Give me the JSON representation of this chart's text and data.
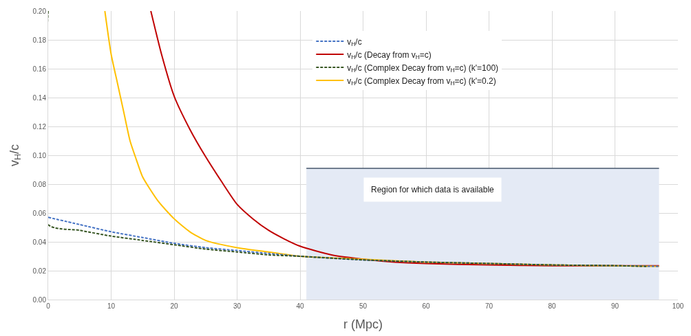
{
  "chart_data": {
    "type": "line",
    "xlabel": "r (Mpc)",
    "ylabel": "v$_{H}$/c",
    "xlim": [
      0,
      100
    ],
    "xticks": [
      0,
      10,
      20,
      30,
      40,
      50,
      60,
      70,
      80,
      90,
      100
    ],
    "ylim": [
      0,
      0.2
    ],
    "yticks": [
      {
        "value": 0,
        "label": "0.00"
      },
      {
        "value": 0.02,
        "label": "0.02"
      },
      {
        "value": 0.04,
        "label": "0.04"
      },
      {
        "value": 0.06,
        "label": "0.06"
      },
      {
        "value": 0.08,
        "label": "0.08"
      },
      {
        "value": 0.1,
        "label": "0.10"
      },
      {
        "value": 0.12,
        "label": "0.12"
      },
      {
        "value": 0.14,
        "label": "0.14"
      },
      {
        "value": 0.16,
        "label": "0.16"
      },
      {
        "value": 0.18,
        "label": "0.18"
      },
      {
        "value": 0.2,
        "label": "0.20"
      }
    ],
    "grid": true,
    "legend": "top right",
    "marker": "none",
    "series": [
      {
        "type": "area",
        "color": "#e4eaf5",
        "x": [
          41,
          97
        ],
        "values": [
          0.091,
          0.091
        ]
      },
      {
        "name": "v$_{H}$/c",
        "color": "#4472c4",
        "line_style": "dashed",
        "x": [
          0,
          5,
          10,
          15,
          20,
          25,
          30,
          35,
          40,
          50,
          60,
          70,
          80,
          90,
          97
        ],
        "values": [
          0.057,
          0.052,
          0.047,
          0.043,
          0.039,
          0.036,
          0.034,
          0.032,
          0.03,
          0.0275,
          0.026,
          0.025,
          0.024,
          0.0235,
          0.023
        ]
      },
      {
        "name": "v$_{H}$/c (Decay from v$_{H}$=c)",
        "color": "#c00000",
        "line_style": "solid",
        "x": [
          16.3,
          18,
          20,
          22.5,
          25,
          27.5,
          30,
          32.5,
          35,
          37.5,
          40,
          45,
          50,
          55,
          60,
          70,
          80,
          90,
          97
        ],
        "values": [
          0.2,
          0.17,
          0.141,
          0.118,
          0.099,
          0.082,
          0.066,
          0.056,
          0.048,
          0.042,
          0.037,
          0.031,
          0.028,
          0.026,
          0.025,
          0.024,
          0.0235,
          0.0235,
          0.0235
        ]
      },
      {
        "name": "v$_{H}$/c (Complex Decay from v$_{H}$=c) (k'=100)",
        "color": "#375623",
        "line_style": "dashed",
        "x": [
          0,
          0,
          5,
          10,
          15,
          20,
          25,
          30,
          35,
          40,
          50,
          60,
          70,
          80,
          90,
          95
        ],
        "values": [
          0.2,
          0.052,
          0.048,
          0.044,
          0.041,
          0.038,
          0.035,
          0.033,
          0.031,
          0.03,
          0.0275,
          0.026,
          0.025,
          0.024,
          0.0235,
          0.023
        ]
      },
      {
        "name": "v$_{H}$/c (Complex Decay from v$_{H}$=c) (k'=0.2)",
        "color": "#ffc000",
        "line_style": "solid",
        "x": [
          9,
          10,
          11,
          12,
          13,
          14,
          15,
          17.5,
          20,
          22.5,
          25,
          30,
          35,
          40,
          50,
          60,
          70,
          80,
          90,
          97
        ],
        "values": [
          0.2,
          0.17,
          0.15,
          0.13,
          0.11,
          0.097,
          0.085,
          0.068,
          0.056,
          0.047,
          0.041,
          0.036,
          0.033,
          0.03,
          0.028,
          0.026,
          0.025,
          0.024,
          0.0235,
          0.023
        ]
      }
    ],
    "annotations": [
      "Region for which data is available"
    ]
  }
}
